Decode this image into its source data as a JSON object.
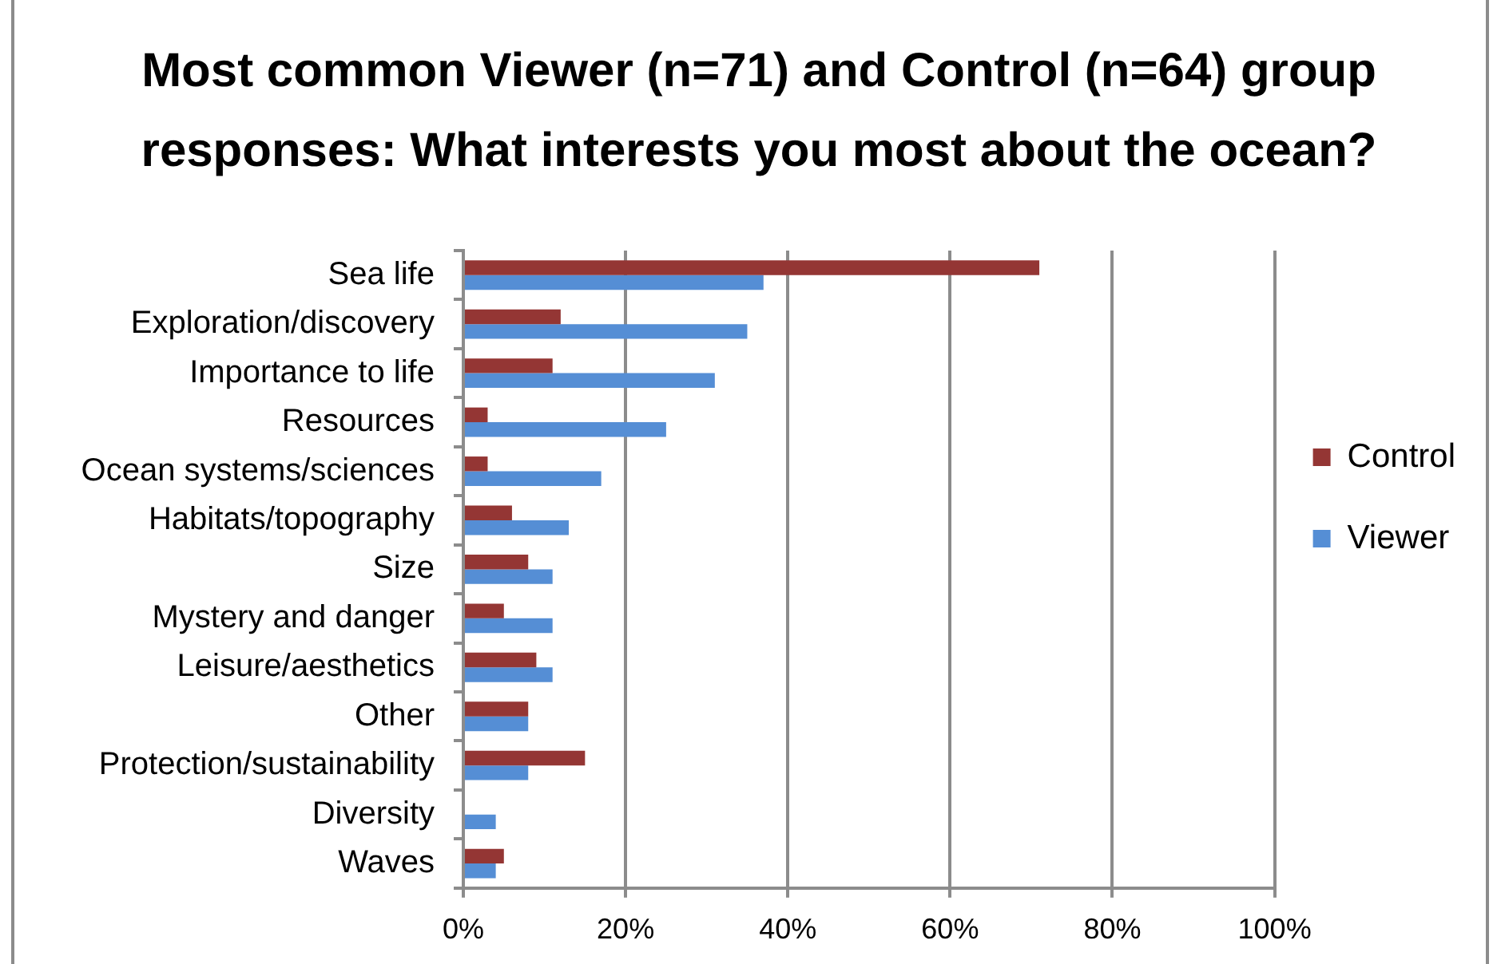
{
  "chart_data": {
    "type": "bar",
    "orientation": "horizontal",
    "title": "Most common Viewer (n=71) and Control (n=64) group responses: What interests you most about the ocean?",
    "categories": [
      "Sea life",
      "Exploration/discovery",
      "Importance to life",
      "Resources",
      "Ocean systems/sciences",
      "Habitats/topography",
      "Size",
      "Mystery and danger",
      "Leisure/aesthetics",
      "Other",
      "Protection/sustainability",
      "Diversity",
      "Waves"
    ],
    "series": [
      {
        "name": "Control",
        "color": "#943634",
        "values": [
          71,
          12,
          11,
          3,
          3,
          6,
          8,
          5,
          9,
          8,
          15,
          0,
          5
        ]
      },
      {
        "name": "Viewer",
        "color": "#558ed5",
        "values": [
          37,
          35,
          31,
          25,
          17,
          13,
          11,
          11,
          11,
          8,
          8,
          4,
          4
        ]
      }
    ],
    "xlim": [
      0,
      100
    ],
    "xticks": [
      {
        "value": 0,
        "label": "0%"
      },
      {
        "value": 20,
        "label": "20%"
      },
      {
        "value": 40,
        "label": "40%"
      },
      {
        "value": 60,
        "label": "60%"
      },
      {
        "value": 80,
        "label": "80%"
      },
      {
        "value": 100,
        "label": "100%"
      }
    ],
    "grid": "x",
    "legend": "right"
  }
}
